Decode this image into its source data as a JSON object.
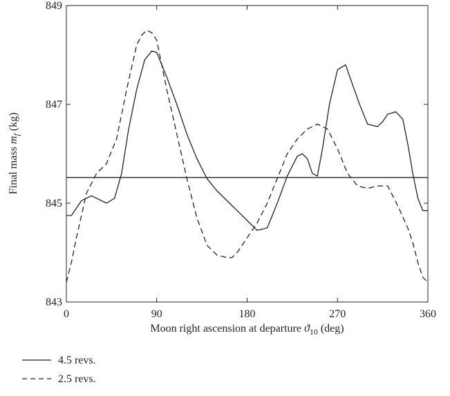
{
  "chart_data": {
    "type": "line",
    "title": "",
    "xlabel": {
      "main": "Moon right ascension at departure ",
      "symbol": "ϑ",
      "subscript": "10",
      "unit": " (deg)"
    },
    "ylabel": {
      "main": "Final mass ",
      "symbol": "m",
      "subscript": "f",
      "unit": " (kg)"
    },
    "xlim": [
      0,
      360
    ],
    "ylim": [
      843,
      849
    ],
    "xticks": [
      "0",
      "90",
      "180",
      "270",
      "360"
    ],
    "yticks": [
      "843",
      "845",
      "847",
      "849"
    ],
    "grid": false,
    "legend_position": "bottom-left",
    "series": [
      {
        "name": "4.5 revs.",
        "style": "solid",
        "color": "#231f20",
        "x": [
          0,
          5,
          15,
          25,
          30,
          40,
          48,
          55,
          62,
          70,
          78,
          85,
          90,
          95,
          100,
          110,
          120,
          130,
          140,
          150,
          160,
          170,
          180,
          190,
          200,
          210,
          220,
          230,
          235,
          240,
          245,
          250,
          255,
          262,
          270,
          278,
          285,
          292,
          300,
          310,
          315,
          320,
          328,
          335,
          340,
          345,
          350,
          355,
          360
        ],
        "y": [
          844.75,
          844.75,
          845.05,
          845.15,
          845.1,
          845.0,
          845.1,
          845.6,
          846.5,
          847.3,
          847.9,
          848.08,
          848.05,
          847.8,
          847.55,
          847.0,
          846.4,
          845.9,
          845.5,
          845.25,
          845.05,
          844.85,
          844.65,
          844.45,
          844.5,
          845.0,
          845.55,
          845.95,
          846.0,
          845.9,
          845.6,
          845.55,
          846.1,
          847.0,
          847.7,
          847.8,
          847.4,
          847.0,
          846.6,
          846.55,
          846.65,
          846.8,
          846.85,
          846.7,
          846.2,
          845.6,
          845.1,
          844.85,
          844.85
        ]
      },
      {
        "name": "2.5 revs.",
        "style": "dashed",
        "color": "#231f20",
        "x": [
          0,
          5,
          10,
          20,
          30,
          40,
          50,
          60,
          70,
          75,
          80,
          85,
          90,
          95,
          100,
          110,
          120,
          130,
          140,
          150,
          160,
          165,
          170,
          180,
          190,
          200,
          210,
          220,
          230,
          240,
          250,
          255,
          260,
          270,
          280,
          290,
          300,
          310,
          320,
          330,
          340,
          345,
          350,
          355,
          360
        ],
        "y": [
          843.4,
          843.8,
          844.3,
          845.2,
          845.6,
          845.8,
          846.3,
          847.3,
          848.2,
          848.4,
          848.5,
          848.45,
          848.3,
          847.8,
          847.3,
          846.4,
          845.5,
          844.7,
          844.15,
          843.95,
          843.9,
          843.9,
          844.0,
          844.3,
          844.6,
          845.0,
          845.5,
          846.0,
          846.3,
          846.5,
          846.6,
          846.55,
          846.5,
          846.1,
          845.6,
          845.35,
          845.3,
          845.35,
          845.35,
          844.95,
          844.5,
          844.2,
          843.8,
          843.5,
          843.4
        ]
      },
      {
        "name": "",
        "style": "solid",
        "color": "#231f20",
        "x": [
          0,
          360
        ],
        "y": [
          845.52,
          845.52
        ]
      }
    ],
    "legend": [
      {
        "label": "4.5 revs.",
        "style": "solid"
      },
      {
        "label": "2.5 revs.",
        "style": "dashed"
      }
    ]
  }
}
